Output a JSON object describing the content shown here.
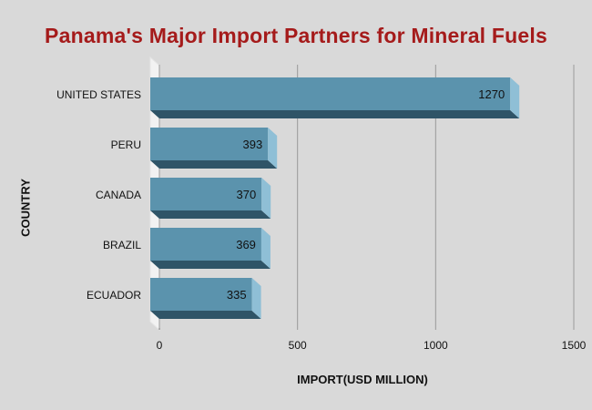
{
  "chart_data": {
    "type": "bar",
    "orientation": "horizontal",
    "title": "Panama's Major Import Partners for Mineral Fuels",
    "xlabel": "IMPORT(USD MILLION)",
    "ylabel": "COUNTRY",
    "categories": [
      "UNITED STATES",
      "PERU",
      "CANADA",
      "BRAZIL",
      "ECUADOR"
    ],
    "values": [
      1270,
      393,
      370,
      369,
      335
    ],
    "xlim": [
      0,
      1500
    ],
    "xticks": [
      0,
      500,
      1000,
      1500
    ],
    "grid": true,
    "legend": "none",
    "bar_color": "#5b93ad"
  }
}
